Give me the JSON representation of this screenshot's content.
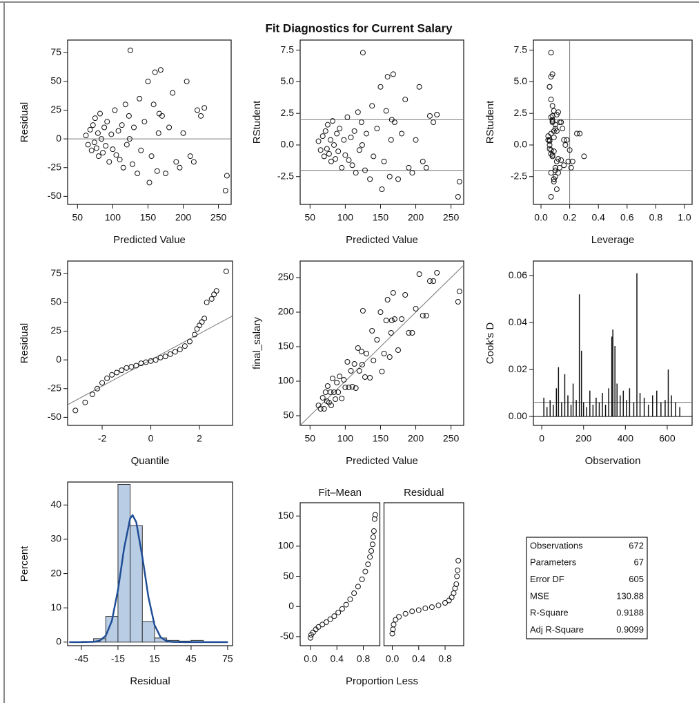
{
  "title": "Fit Diagnostics for Current Salary",
  "chart_data": [
    {
      "type": "scatter",
      "xlabel": "Predicted Value",
      "ylabel": "Residual",
      "xlim": [
        36,
        268
      ],
      "ylim": [
        -57,
        86
      ],
      "xticks": [
        50,
        100,
        150,
        200,
        250
      ],
      "yticks": [
        -50,
        -25,
        0,
        25,
        50,
        75
      ],
      "reflines": {
        "y": [
          0
        ]
      },
      "x": [
        62,
        65,
        68,
        70,
        72,
        74,
        75,
        77,
        79,
        80,
        82,
        84,
        86,
        88,
        90,
        92,
        95,
        98,
        100,
        103,
        105,
        108,
        110,
        113,
        115,
        118,
        120,
        123,
        125,
        128,
        130,
        135,
        138,
        140,
        145,
        150,
        152,
        155,
        158,
        160,
        163,
        165,
        168,
        170,
        175,
        180,
        185,
        190,
        195,
        200,
        205,
        210,
        215,
        220,
        225,
        230,
        260,
        262,
        124,
        166
      ],
      "y": [
        3,
        -5,
        8,
        -10,
        12,
        -3,
        18,
        -8,
        5,
        -15,
        22,
        0,
        -12,
        10,
        -6,
        15,
        -20,
        4,
        -9,
        25,
        -14,
        7,
        -18,
        12,
        -25,
        30,
        -5,
        20,
        77,
        -22,
        10,
        -30,
        35,
        -10,
        15,
        50,
        -38,
        -15,
        30,
        58,
        -28,
        5,
        60,
        20,
        -30,
        10,
        40,
        -20,
        -25,
        5,
        50,
        -15,
        -20,
        25,
        20,
        27,
        -45,
        -32,
        0,
        22
      ]
    },
    {
      "type": "scatter",
      "xlabel": "Predicted Value",
      "ylabel": "RStudent",
      "xlim": [
        36,
        268
      ],
      "ylim": [
        -4.7,
        8.3
      ],
      "xticks": [
        50,
        100,
        150,
        200,
        250
      ],
      "yticks": [
        {
          "value": -2.5,
          "label": "-2.5"
        },
        {
          "value": 0,
          "label": "0.0"
        },
        2.5,
        {
          "value": 5,
          "label": "5.0"
        },
        7.5
      ],
      "reflines": {
        "y": [
          -2,
          2
        ]
      },
      "x": [
        62,
        65,
        68,
        70,
        72,
        74,
        75,
        77,
        79,
        80,
        82,
        84,
        86,
        88,
        90,
        92,
        95,
        98,
        100,
        103,
        105,
        108,
        110,
        113,
        115,
        118,
        120,
        123,
        125,
        128,
        130,
        135,
        138,
        140,
        145,
        150,
        152,
        155,
        158,
        160,
        163,
        165,
        168,
        170,
        175,
        180,
        185,
        190,
        195,
        200,
        205,
        210,
        215,
        220,
        225,
        230,
        260,
        262,
        124,
        166
      ],
      "y": [
        0.3,
        -0.4,
        0.7,
        -0.9,
        1.1,
        -0.3,
        1.6,
        -0.7,
        0.4,
        -1.3,
        1.9,
        0,
        -1.1,
        0.9,
        -0.5,
        1.3,
        -1.8,
        0.4,
        -0.8,
        2.2,
        -1.2,
        0.6,
        -1.6,
        1.1,
        -2.2,
        2.6,
        -0.4,
        1.8,
        7.3,
        -2.0,
        0.9,
        -2.7,
        3.1,
        -0.9,
        1.3,
        4.6,
        -3.5,
        -1.3,
        2.7,
        5.4,
        -2.5,
        0.4,
        5.6,
        1.8,
        -2.7,
        0.9,
        3.6,
        -1.8,
        -2.2,
        0.4,
        4.6,
        -1.3,
        -1.8,
        2.3,
        1.8,
        2.4,
        -4.1,
        -2.9,
        0,
        2.0
      ]
    },
    {
      "type": "scatter",
      "xlabel": "Leverage",
      "ylabel": "RStudent",
      "xlim": [
        -0.053,
        1.053
      ],
      "ylim": [
        -4.7,
        8.3
      ],
      "xticks": [
        {
          "value": 0,
          "label": "0.0"
        },
        0.2,
        0.4,
        0.6,
        0.8,
        {
          "value": 1,
          "label": "1.0"
        }
      ],
      "yticks": [
        {
          "value": -2.5,
          "label": "-2.5"
        },
        {
          "value": 0,
          "label": "0.0"
        },
        2.5,
        {
          "value": 5,
          "label": "5.0"
        },
        7.5
      ],
      "reflines": {
        "y": [
          -2,
          2
        ],
        "x": [
          0.2
        ]
      },
      "x": [
        0.06,
        0.07,
        0.05,
        0.08,
        0.09,
        0.06,
        0.1,
        0.07,
        0.05,
        0.11,
        0.08,
        0.06,
        0.12,
        0.07,
        0.09,
        0.1,
        0.13,
        0.06,
        0.08,
        0.07,
        0.14,
        0.09,
        0.16,
        0.11,
        0.07,
        0.12,
        0.2,
        0.08,
        0.07,
        0.1,
        0.25,
        0.09,
        0.08,
        0.3,
        0.15,
        0.06,
        0.11,
        0.22,
        0.09,
        0.07,
        0.1,
        0.18,
        0.08,
        0.13,
        0.09,
        0.27,
        0.07,
        0.21,
        0.12,
        0.16,
        0.06,
        0.19,
        0.1,
        0.08,
        0.14,
        0.11,
        0.07,
        0.09,
        0.17,
        0.08
      ],
      "y": [
        0.3,
        -0.4,
        0.7,
        -0.9,
        1.1,
        -0.3,
        1.6,
        -0.7,
        0.4,
        -1.3,
        1.9,
        0,
        -1.1,
        0.9,
        -0.5,
        1.3,
        -1.8,
        0.4,
        -0.8,
        2.2,
        -1.2,
        0.6,
        -1.6,
        1.1,
        -2.2,
        2.6,
        -0.4,
        1.8,
        7.3,
        -2.0,
        0.9,
        -2.7,
        3.1,
        -0.9,
        1.3,
        4.6,
        -3.5,
        -1.3,
        2.7,
        5.4,
        -2.5,
        0.4,
        5.6,
        1.8,
        -2.7,
        0.9,
        3.6,
        -1.8,
        -2.2,
        0.4,
        4.6,
        -1.3,
        -1.8,
        2.3,
        1.8,
        2.4,
        -4.1,
        -2.9,
        0,
        2.0
      ]
    },
    {
      "type": "scatter",
      "xlabel": "Quantile",
      "ylabel": "Residual",
      "xlim": [
        -3.42,
        3.36
      ],
      "ylim": [
        -57,
        86
      ],
      "xticks": [
        -2,
        0,
        2
      ],
      "yticks": [
        -50,
        -25,
        0,
        25,
        50,
        75
      ],
      "line": {
        "intercept": 0,
        "slope": 11.4
      },
      "x": [
        -3.1,
        -2.7,
        -2.4,
        -2.2,
        -2.0,
        -1.8,
        -1.6,
        -1.4,
        -1.2,
        -1.0,
        -0.8,
        -0.6,
        -0.4,
        -0.2,
        0,
        0.2,
        0.4,
        0.6,
        0.8,
        1.0,
        1.2,
        1.4,
        1.6,
        1.8,
        1.9,
        2.0,
        2.1,
        2.2,
        2.3,
        2.5,
        2.6,
        2.7,
        3.1
      ],
      "y": [
        -44,
        -37,
        -30,
        -25,
        -20,
        -16,
        -13,
        -11,
        -9,
        -7,
        -6,
        -5,
        -3,
        -2,
        -1,
        0,
        2,
        3,
        5,
        7,
        9,
        12,
        16,
        22,
        27,
        30,
        33,
        36,
        50,
        53,
        57,
        60,
        77
      ]
    },
    {
      "type": "scatter",
      "xlabel": "Predicted Value",
      "ylabel": "final_salary",
      "xlim": [
        36,
        268
      ],
      "ylim": [
        36,
        274
      ],
      "xticks": [
        50,
        100,
        150,
        200,
        250
      ],
      "yticks": [
        50,
        100,
        150,
        200,
        250
      ],
      "line": {
        "intercept": 0,
        "slope": 1
      },
      "x": [
        62,
        65,
        68,
        70,
        72,
        74,
        75,
        77,
        79,
        80,
        82,
        84,
        86,
        88,
        90,
        92,
        95,
        98,
        100,
        103,
        105,
        108,
        110,
        113,
        115,
        118,
        120,
        123,
        125,
        128,
        130,
        135,
        138,
        140,
        145,
        150,
        152,
        155,
        158,
        160,
        163,
        165,
        168,
        170,
        175,
        180,
        185,
        190,
        195,
        200,
        205,
        210,
        215,
        220,
        225,
        230,
        260,
        262,
        124,
        166
      ],
      "y": [
        65,
        60,
        76,
        60,
        84,
        71,
        93,
        69,
        84,
        65,
        104,
        84,
        74,
        98,
        84,
        107,
        75,
        102,
        91,
        128,
        91,
        115,
        92,
        125,
        90,
        148,
        115,
        143,
        202,
        106,
        140,
        105,
        173,
        130,
        160,
        200,
        114,
        140,
        188,
        218,
        135,
        170,
        228,
        190,
        145,
        190,
        225,
        170,
        170,
        205,
        255,
        195,
        195,
        245,
        245,
        257,
        215,
        230,
        124,
        188
      ]
    },
    {
      "type": "needle",
      "xlabel": "Observation",
      "ylabel": "Cook's D",
      "xlim": [
        -40,
        719
      ],
      "ylim": [
        -0.0038,
        0.0662
      ],
      "xticks": [
        0,
        200,
        400,
        600
      ],
      "yticks": [
        {
          "value": 0,
          "label": "0.00"
        },
        {
          "value": 0.02,
          "label": "0.02"
        },
        {
          "value": 0.04,
          "label": "0.04"
        },
        {
          "value": 0.06,
          "label": "0.06"
        }
      ],
      "reflines": {
        "y": [
          0.006
        ]
      },
      "x": [
        10,
        25,
        40,
        55,
        70,
        80,
        95,
        110,
        125,
        140,
        150,
        165,
        180,
        190,
        200,
        215,
        230,
        245,
        260,
        275,
        290,
        305,
        320,
        335,
        340,
        350,
        360,
        375,
        390,
        405,
        420,
        440,
        455,
        470,
        490,
        510,
        530,
        550,
        570,
        590,
        605,
        620,
        640,
        660
      ],
      "y": [
        0.008,
        0.004,
        0.007,
        0.005,
        0.012,
        0.021,
        0.006,
        0.018,
        0.009,
        0.005,
        0.014,
        0.007,
        0.052,
        0.028,
        0.006,
        0.004,
        0.011,
        0.005,
        0.008,
        0.006,
        0.01,
        0.005,
        0.012,
        0.034,
        0.037,
        0.03,
        0.014,
        0.009,
        0.011,
        0.007,
        0.012,
        0.006,
        0.061,
        0.01,
        0.008,
        0.005,
        0.009,
        0.011,
        0.006,
        0.007,
        0.02,
        0.009,
        0.006,
        0.004
      ]
    },
    {
      "type": "histogram",
      "xlabel": "Residual",
      "ylabel": "Percent",
      "xlim": [
        -56.3,
        79
      ],
      "ylim": [
        -1.04,
        46.7
      ],
      "xticks": [
        -45,
        -15,
        15,
        45,
        75
      ],
      "yticks": [
        0,
        10,
        20,
        30,
        40
      ],
      "color": "#b9cde5",
      "curve_color": "#1f4e96",
      "bins": [
        -45,
        -35,
        -25,
        -15,
        -5,
        5,
        15,
        25,
        35,
        45,
        55,
        65,
        75
      ],
      "counts": [
        0.2,
        1,
        7.5,
        46,
        34,
        6,
        1.2,
        0.5,
        0.3,
        0.5,
        0.1,
        0.1
      ],
      "curve": {
        "x": [
          -55,
          -45,
          -35,
          -30,
          -25,
          -20,
          -15,
          -10,
          -5,
          -3,
          0,
          5,
          10,
          15,
          20,
          25,
          30,
          40,
          50,
          60,
          75
        ],
        "y": [
          0,
          0,
          0.07,
          0.41,
          1.86,
          6.2,
          15.2,
          27.3,
          36.1,
          37,
          35,
          24.9,
          13.1,
          5,
          1.41,
          0.29,
          0.04,
          0,
          0,
          0,
          0
        ]
      }
    },
    {
      "type": "spread",
      "xlabel": "Proportion Less",
      "ylim": [
        -65,
        172
      ],
      "yticks": [
        -50,
        0,
        50,
        100,
        150
      ],
      "panels": [
        {
          "title": "Fit–Mean",
          "xlim": [
            -0.156,
            1.05
          ],
          "xticks": [
            {
              "value": 0,
              "label": "0.0"
            },
            0.4,
            0.8
          ],
          "x": [
            0,
            0.01,
            0.04,
            0.08,
            0.12,
            0.18,
            0.24,
            0.3,
            0.36,
            0.42,
            0.48,
            0.54,
            0.6,
            0.66,
            0.72,
            0.78,
            0.83,
            0.87,
            0.9,
            0.92,
            0.94,
            0.95,
            0.96,
            0.97,
            0.98
          ],
          "y": [
            -52,
            -47,
            -43,
            -38,
            -34,
            -30,
            -26,
            -21,
            -16,
            -10,
            -4,
            3,
            12,
            22,
            33,
            45,
            58,
            70,
            82,
            92,
            103,
            115,
            125,
            145,
            152
          ]
        },
        {
          "title": "Residual",
          "xlim": [
            -0.126,
            1.082
          ],
          "xticks": [
            {
              "value": 0,
              "label": "0.0"
            },
            0.4,
            0.8
          ],
          "x": [
            0,
            0.01,
            0.02,
            0.05,
            0.1,
            0.2,
            0.3,
            0.4,
            0.5,
            0.6,
            0.7,
            0.8,
            0.86,
            0.9,
            0.93,
            0.95,
            0.97,
            0.98,
            0.99,
            1.0
          ],
          "y": [
            -45,
            -38,
            -30,
            -22,
            -17,
            -12,
            -8,
            -6,
            -3,
            -1,
            2,
            6,
            10,
            15,
            22,
            30,
            37,
            50,
            60,
            76
          ]
        }
      ]
    }
  ],
  "table": {
    "rows": [
      [
        "Observations",
        672
      ],
      [
        "Parameters",
        67
      ],
      [
        "Error DF",
        605
      ],
      [
        "MSE",
        130.88
      ],
      [
        "R-Square",
        0.9188
      ],
      [
        "Adj R-Square",
        0.9099
      ]
    ]
  }
}
